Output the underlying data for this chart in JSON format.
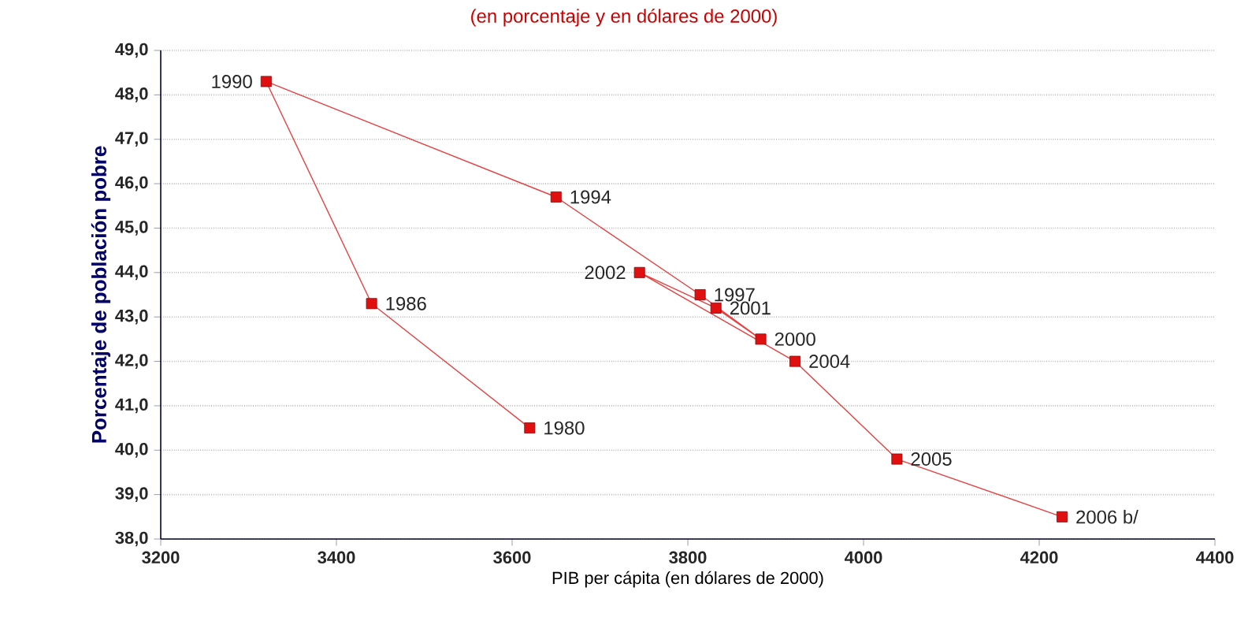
{
  "chart_data": {
    "type": "line",
    "subtitle": "(en porcentaje y en dólares de 2000)",
    "xlabel": "PIB per cápita (en dólares de 2000)",
    "ylabel": "Porcentaje de población pobre",
    "series": [
      {
        "color": "#e01010",
        "marker": "square",
        "x": [
          3620,
          3440,
          3320,
          3650,
          3814,
          3883,
          3832,
          3745,
          3922,
          4038,
          4226
        ],
        "values": [
          40.5,
          43.3,
          48.3,
          45.7,
          43.5,
          42.5,
          43.2,
          44.0,
          42.0,
          39.8,
          38.5
        ]
      }
    ],
    "annotations": [
      {
        "text": "1980",
        "x": 3620,
        "y": 40.5
      },
      {
        "text": "1986",
        "x": 3440,
        "y": 43.3
      },
      {
        "text": "1990",
        "x": 3320,
        "y": 48.3
      },
      {
        "text": "1994",
        "x": 3650,
        "y": 45.7
      },
      {
        "text": "1997",
        "x": 3814,
        "y": 43.5
      },
      {
        "text": "2000",
        "x": 3883,
        "y": 42.5
      },
      {
        "text": "2001",
        "x": 3832,
        "y": 43.2
      },
      {
        "text": "2002",
        "x": 3745,
        "y": 44.0
      },
      {
        "text": "2004",
        "x": 3922,
        "y": 42.0
      },
      {
        "text": "2005",
        "x": 4038,
        "y": 39.8
      },
      {
        "text": "2006 b/",
        "x": 4226,
        "y": 38.5
      }
    ],
    "xlim": [
      3200,
      4400
    ],
    "xticks": [
      3200,
      3400,
      3600,
      3800,
      4000,
      4200,
      4400
    ],
    "ylim": [
      38,
      49
    ],
    "yticks": [
      {
        "value": 38,
        "label": "38,0"
      },
      {
        "value": 39,
        "label": "39,0"
      },
      {
        "value": 40,
        "label": "40,0"
      },
      {
        "value": 41,
        "label": "41,0"
      },
      {
        "value": 42,
        "label": "42,0"
      },
      {
        "value": 43,
        "label": "43,0"
      },
      {
        "value": 44,
        "label": "44,0"
      },
      {
        "value": 45,
        "label": "45,0"
      },
      {
        "value": 46,
        "label": "46,0"
      },
      {
        "value": 47,
        "label": "47,0"
      },
      {
        "value": 48,
        "label": "48,0"
      },
      {
        "value": 49,
        "label": "49,0"
      }
    ],
    "grid": "y"
  }
}
